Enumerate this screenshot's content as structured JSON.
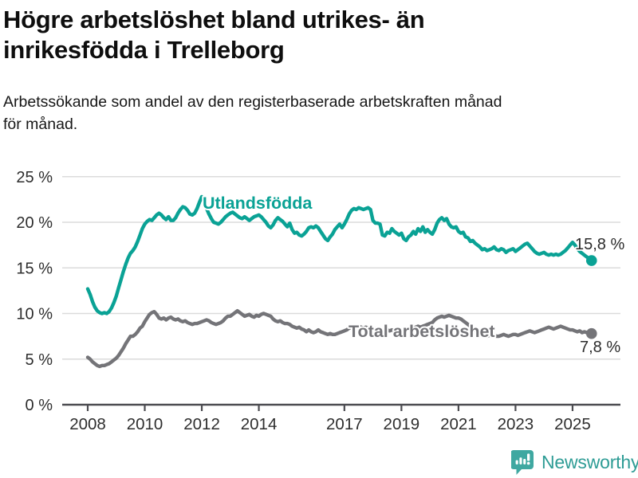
{
  "header": {
    "title": "Högre arbetslöshet bland utrikes- än inrikesfödda i Trelleborg",
    "title_lines": [
      "Högre arbetslöshet bland utrikes- än",
      "inrikesfödda i Trelleborg"
    ],
    "subtitle": "Arbetssökande som andel av den registerbaserade arbetskraften månad för månad.",
    "subtitle_lines": [
      "Arbetssökande som andel av den registerbaserade arbetskraften månad",
      "för månad."
    ]
  },
  "footer": {
    "brand": "Newsworthy"
  },
  "colors": {
    "accent_teal": "#0aa295",
    "series_gray": "#747478",
    "grid": "#dbdbdb",
    "axis": "#4c4c51",
    "axis_text": "#2e2e2e",
    "value_label": "#2b2b2b",
    "title": "#0e0e0e",
    "logo_teal": "#3fa8a1",
    "logo_text": "#2e9c95"
  },
  "chart_data": {
    "type": "line",
    "x_start_year": 2008,
    "points_per_year": 12,
    "xlim": [
      2008,
      2025.75
    ],
    "ylim": [
      0,
      25
    ],
    "grid": true,
    "x_ticks": [
      {
        "value": 2008,
        "label": "2008"
      },
      {
        "value": 2010,
        "label": "2010"
      },
      {
        "value": 2012,
        "label": "2012"
      },
      {
        "value": 2014,
        "label": "2014"
      },
      {
        "value": 2017,
        "label": "2017"
      },
      {
        "value": 2019,
        "label": "2019"
      },
      {
        "value": 2021,
        "label": "2021"
      },
      {
        "value": 2023,
        "label": "2023"
      },
      {
        "value": 2025,
        "label": "2025"
      }
    ],
    "y_ticks": [
      {
        "value": 0,
        "label": "0 %"
      },
      {
        "value": 5,
        "label": "5 %"
      },
      {
        "value": 10,
        "label": "10 %"
      },
      {
        "value": 15,
        "label": "15 %"
      },
      {
        "value": 20,
        "label": "20 %"
      },
      {
        "value": 25,
        "label": "25 %"
      }
    ],
    "series": [
      {
        "name": "Utlandsfödda",
        "color": "#0aa295",
        "end_label": "15,8 %",
        "end_value": 15.8,
        "values": [
          12.7,
          12.1,
          11.3,
          10.7,
          10.3,
          10.1,
          10.0,
          10.1,
          10.0,
          10.2,
          10.6,
          11.2,
          11.9,
          12.8,
          13.7,
          14.6,
          15.4,
          16.1,
          16.6,
          16.9,
          17.3,
          17.9,
          18.6,
          19.3,
          19.8,
          20.1,
          20.3,
          20.2,
          20.5,
          20.8,
          21.0,
          20.8,
          20.5,
          20.3,
          20.6,
          20.2,
          20.2,
          20.5,
          21.0,
          21.4,
          21.7,
          21.6,
          21.3,
          20.9,
          20.8,
          21.0,
          21.5,
          22.2,
          22.8,
          22.3,
          21.5,
          20.9,
          20.4,
          20.0,
          19.9,
          19.8,
          20.0,
          20.3,
          20.6,
          20.8,
          21.0,
          21.1,
          20.9,
          20.7,
          20.5,
          20.4,
          20.6,
          20.4,
          20.2,
          20.4,
          20.6,
          20.7,
          20.8,
          20.6,
          20.3,
          20.0,
          19.6,
          19.4,
          19.7,
          20.2,
          20.5,
          20.3,
          20.1,
          19.8,
          19.5,
          19.9,
          19.2,
          18.8,
          18.9,
          18.6,
          18.5,
          18.7,
          19.0,
          19.4,
          19.5,
          19.4,
          19.6,
          19.4,
          19.0,
          18.6,
          18.2,
          18.0,
          18.4,
          18.7,
          19.2,
          19.5,
          19.8,
          19.4,
          19.8,
          20.3,
          20.9,
          21.3,
          21.5,
          21.4,
          21.6,
          21.5,
          21.4,
          21.5,
          21.6,
          21.4,
          20.2,
          19.9,
          19.9,
          19.8,
          18.6,
          18.5,
          18.9,
          18.8,
          19.3,
          19.0,
          18.8,
          18.6,
          18.8,
          18.2,
          18.0,
          18.4,
          18.6,
          19.0,
          18.7,
          19.3,
          19.0,
          19.5,
          18.9,
          19.2,
          18.9,
          18.7,
          19.2,
          19.9,
          20.3,
          20.5,
          20.2,
          20.4,
          19.8,
          19.5,
          19.4,
          19.5,
          19.0,
          18.8,
          18.9,
          18.4,
          18.3,
          17.9,
          18.0,
          17.7,
          17.5,
          17.3,
          17.0,
          17.1,
          16.9,
          17.0,
          17.1,
          17.3,
          17.0,
          16.9,
          17.1,
          17.0,
          16.7,
          16.9,
          17.0,
          17.1,
          16.8,
          17.0,
          17.2,
          17.4,
          17.6,
          17.7,
          17.4,
          17.1,
          16.8,
          16.6,
          16.5,
          16.6,
          16.7,
          16.5,
          16.4,
          16.5,
          16.4,
          16.5,
          16.4,
          16.5,
          16.7,
          16.9,
          17.2,
          17.5,
          17.8,
          17.5,
          17.1,
          16.8,
          16.6,
          16.4,
          16.2,
          16.0,
          15.8
        ]
      },
      {
        "name": "Total arbetslöshet",
        "color": "#747478",
        "end_label": "7,8 %",
        "end_value": 7.8,
        "values": [
          5.2,
          5.0,
          4.7,
          4.5,
          4.3,
          4.2,
          4.3,
          4.3,
          4.4,
          4.5,
          4.7,
          4.9,
          5.1,
          5.4,
          5.8,
          6.2,
          6.7,
          7.1,
          7.5,
          7.5,
          7.7,
          8.0,
          8.4,
          8.6,
          9.1,
          9.5,
          9.9,
          10.1,
          10.2,
          9.9,
          9.5,
          9.4,
          9.5,
          9.3,
          9.5,
          9.6,
          9.4,
          9.3,
          9.4,
          9.2,
          9.1,
          9.2,
          9.0,
          8.9,
          8.8,
          8.9,
          8.9,
          9.0,
          9.1,
          9.2,
          9.3,
          9.2,
          9.0,
          8.9,
          8.8,
          8.9,
          9.0,
          9.2,
          9.5,
          9.7,
          9.7,
          9.9,
          10.1,
          10.3,
          10.1,
          9.9,
          9.7,
          9.8,
          9.9,
          9.7,
          9.6,
          9.8,
          9.7,
          9.9,
          10.0,
          9.9,
          9.8,
          9.7,
          9.4,
          9.2,
          9.1,
          9.2,
          9.0,
          8.9,
          8.9,
          8.8,
          8.6,
          8.5,
          8.4,
          8.5,
          8.3,
          8.2,
          8.0,
          8.2,
          8.0,
          7.9,
          8.0,
          8.2,
          8.0,
          7.9,
          7.8,
          7.7,
          7.8,
          7.7,
          7.7,
          7.8,
          7.9,
          8.0,
          8.1,
          8.2,
          8.4,
          8.5,
          8.6,
          8.5,
          8.6,
          8.5,
          8.4,
          8.5,
          8.4,
          8.5,
          8.4,
          8.3,
          8.2,
          8.3,
          8.2,
          8.1,
          8.2,
          8.1,
          8.2,
          8.1,
          8.0,
          8.1,
          8.2,
          8.1,
          8.2,
          8.3,
          8.2,
          8.4,
          8.5,
          8.6,
          8.5,
          8.6,
          8.7,
          8.8,
          8.9,
          9.0,
          9.3,
          9.5,
          9.6,
          9.7,
          9.6,
          9.7,
          9.8,
          9.7,
          9.6,
          9.5,
          9.5,
          9.4,
          9.2,
          9.0,
          8.8,
          8.6,
          8.4,
          8.2,
          8.0,
          7.9,
          7.8,
          7.7,
          7.5,
          7.6,
          7.7,
          7.6,
          7.5,
          7.5,
          7.6,
          7.7,
          7.6,
          7.5,
          7.6,
          7.7,
          7.7,
          7.6,
          7.7,
          7.8,
          7.9,
          8.0,
          8.1,
          8.0,
          7.9,
          8.0,
          8.1,
          8.2,
          8.3,
          8.4,
          8.5,
          8.4,
          8.3,
          8.4,
          8.5,
          8.6,
          8.5,
          8.4,
          8.3,
          8.2,
          8.2,
          8.1,
          8.0,
          8.1,
          7.9,
          8.0,
          7.9,
          7.8,
          7.8
        ]
      }
    ]
  }
}
